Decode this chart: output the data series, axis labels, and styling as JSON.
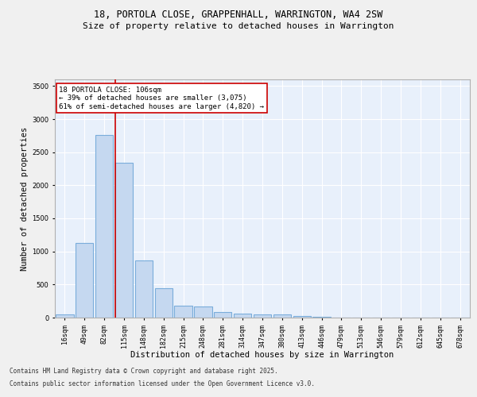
{
  "title1": "18, PORTOLA CLOSE, GRAPPENHALL, WARRINGTON, WA4 2SW",
  "title2": "Size of property relative to detached houses in Warrington",
  "xlabel": "Distribution of detached houses by size in Warrington",
  "ylabel": "Number of detached properties",
  "categories": [
    "16sqm",
    "49sqm",
    "82sqm",
    "115sqm",
    "148sqm",
    "182sqm",
    "215sqm",
    "248sqm",
    "281sqm",
    "314sqm",
    "347sqm",
    "380sqm",
    "413sqm",
    "446sqm",
    "479sqm",
    "513sqm",
    "546sqm",
    "579sqm",
    "612sqm",
    "645sqm",
    "678sqm"
  ],
  "values": [
    50,
    1130,
    2760,
    2340,
    870,
    440,
    175,
    170,
    90,
    65,
    45,
    45,
    30,
    10,
    5,
    2,
    2,
    1,
    0,
    0,
    0
  ],
  "bar_color": "#c5d8f0",
  "bar_edge_color": "#7aaddb",
  "bar_edge_width": 0.8,
  "vline_color": "#cc0000",
  "property_label": "18 PORTOLA CLOSE: 106sqm",
  "annotation_line1": "← 39% of detached houses are smaller (3,075)",
  "annotation_line2": "61% of semi-detached houses are larger (4,820) →",
  "annotation_box_color": "#cc0000",
  "ylim": [
    0,
    3600
  ],
  "yticks": [
    0,
    500,
    1000,
    1500,
    2000,
    2500,
    3000,
    3500
  ],
  "background_color": "#e8f0fb",
  "grid_color": "#ffffff",
  "footer1": "Contains HM Land Registry data © Crown copyright and database right 2025.",
  "footer2": "Contains public sector information licensed under the Open Government Licence v3.0.",
  "title1_fontsize": 8.5,
  "title2_fontsize": 8,
  "xlabel_fontsize": 7.5,
  "ylabel_fontsize": 7.5,
  "tick_fontsize": 6,
  "annotation_fontsize": 6.5,
  "footer_fontsize": 5.5
}
